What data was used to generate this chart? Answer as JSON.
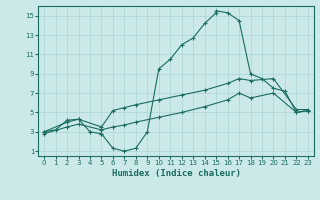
{
  "title": "",
  "xlabel": "Humidex (Indice chaleur)",
  "xlim": [
    -0.5,
    23.5
  ],
  "ylim": [
    0.5,
    16
  ],
  "xticks": [
    0,
    1,
    2,
    3,
    4,
    5,
    6,
    7,
    8,
    9,
    10,
    11,
    12,
    13,
    14,
    15,
    16,
    17,
    18,
    19,
    20,
    21,
    22,
    23
  ],
  "yticks": [
    1,
    3,
    5,
    7,
    9,
    11,
    13,
    15
  ],
  "bg_color": "#cce9ea",
  "grid_color": "#aad4d6",
  "line_color": "#1a6b60",
  "curve1_x": [
    0,
    1,
    2,
    3,
    4,
    5,
    5,
    6,
    7,
    8,
    9,
    10,
    11,
    12,
    13,
    14,
    15,
    15,
    16,
    17,
    18,
    19,
    20,
    21,
    22,
    23
  ],
  "curve1_y": [
    3,
    3.2,
    4.2,
    4.3,
    3,
    2.8,
    2.8,
    1.3,
    1,
    1.3,
    3,
    9.5,
    10.5,
    12,
    12.7,
    14.2,
    15.3,
    15.5,
    15.3,
    14.5,
    9,
    8.5,
    7.5,
    7.2,
    5,
    5.2
  ],
  "curve2_x": [
    0,
    2,
    3,
    5,
    6,
    7,
    8,
    10,
    12,
    14,
    16,
    17,
    18,
    20,
    22,
    23
  ],
  "curve2_y": [
    3,
    4,
    4.3,
    3.5,
    5.2,
    5.5,
    5.8,
    6.3,
    6.8,
    7.3,
    8,
    8.5,
    8.3,
    8.5,
    5.3,
    5.3
  ],
  "curve3_x": [
    0,
    2,
    3,
    5,
    6,
    7,
    8,
    10,
    12,
    14,
    16,
    17,
    18,
    20,
    22,
    23
  ],
  "curve3_y": [
    2.8,
    3.5,
    3.8,
    3.2,
    3.5,
    3.7,
    4,
    4.5,
    5,
    5.6,
    6.3,
    7,
    6.5,
    7,
    5,
    5.2
  ]
}
